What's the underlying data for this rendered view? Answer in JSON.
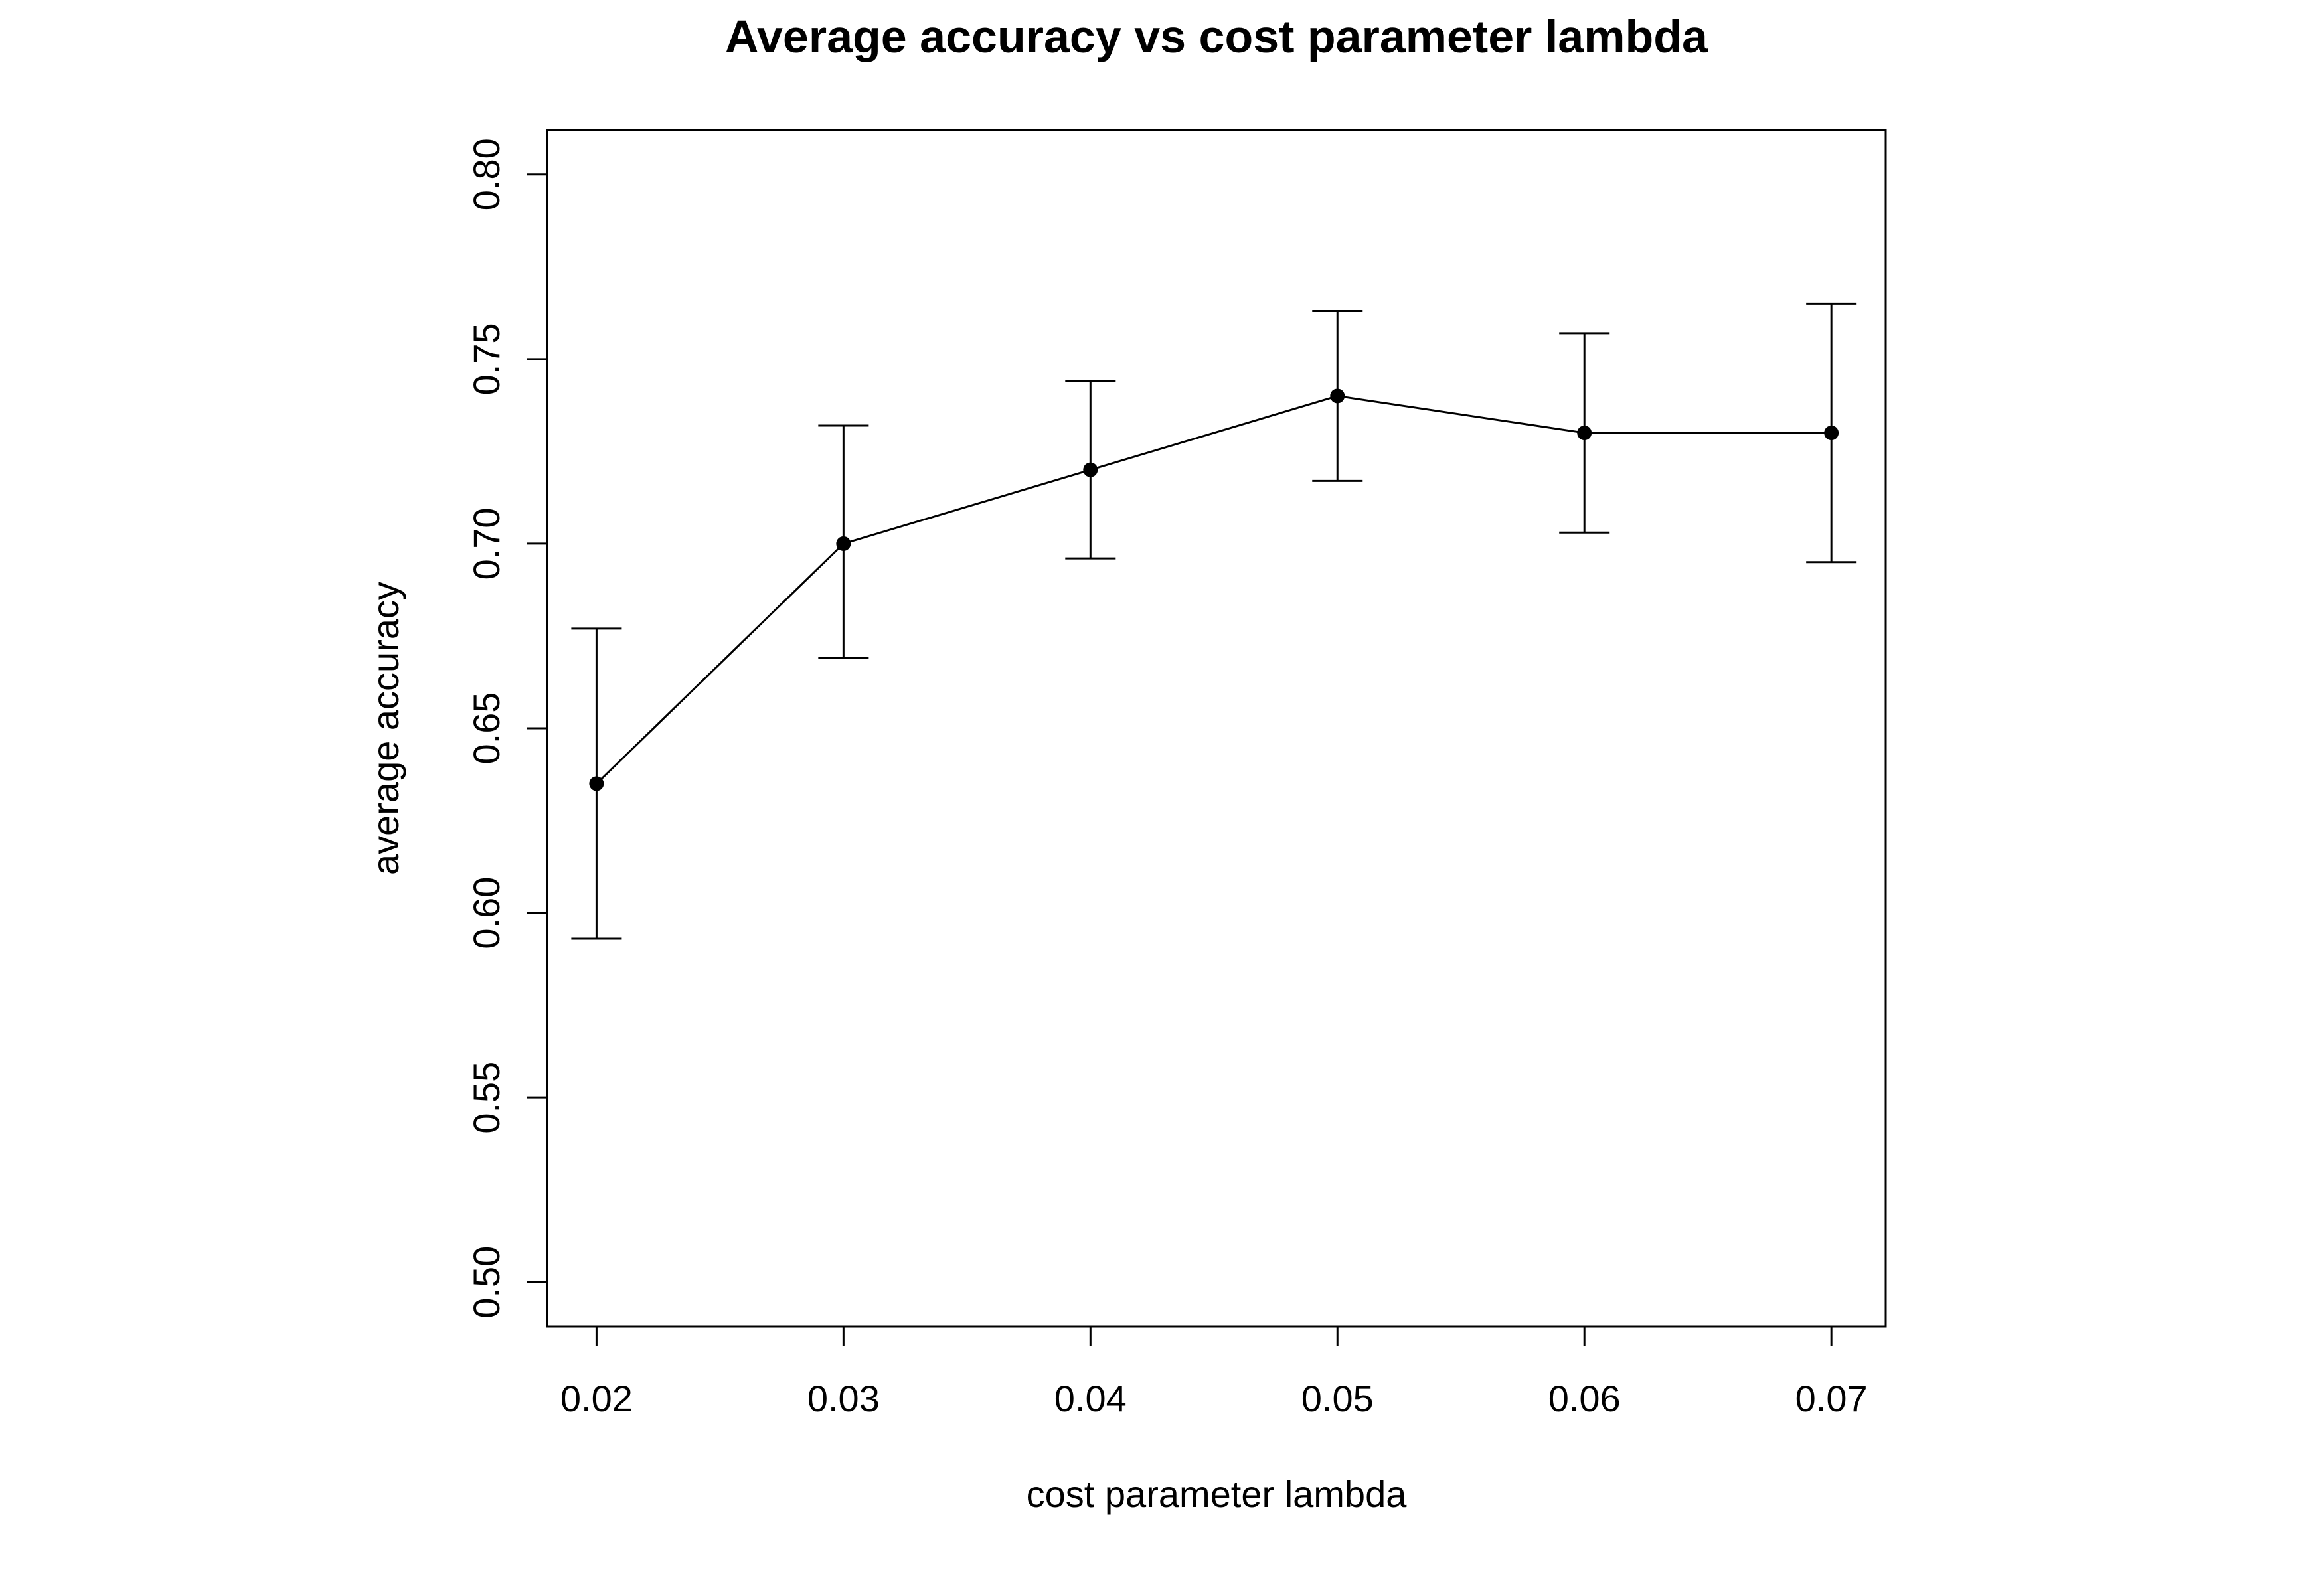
{
  "chart_data": {
    "type": "line",
    "title": "Average accuracy vs cost parameter lambda",
    "xlabel": "cost parameter lambda",
    "ylabel": "average accuracy",
    "x": [
      0.02,
      0.03,
      0.04,
      0.05,
      0.06,
      0.07
    ],
    "x_tick_labels": [
      "0.02",
      "0.03",
      "0.04",
      "0.05",
      "0.06",
      "0.07"
    ],
    "y_tick_labels": [
      "0.50",
      "0.55",
      "0.60",
      "0.65",
      "0.70",
      "0.75",
      "0.80"
    ],
    "y_ticks": [
      0.5,
      0.55,
      0.6,
      0.65,
      0.7,
      0.75,
      0.8
    ],
    "xlim": [
      0.018,
      0.0722
    ],
    "ylim": [
      0.488,
      0.812
    ],
    "series": [
      {
        "values": [
          0.635,
          0.7,
          0.72,
          0.74,
          0.73,
          0.73
        ],
        "error_lower": [
          0.593,
          0.669,
          0.696,
          0.717,
          0.703,
          0.695
        ],
        "error_upper": [
          0.677,
          0.732,
          0.744,
          0.763,
          0.757,
          0.765
        ]
      }
    ],
    "grid": false,
    "legend": "none",
    "colors": {
      "line": "#000000",
      "marker": "#000000",
      "frame": "#000000"
    }
  }
}
